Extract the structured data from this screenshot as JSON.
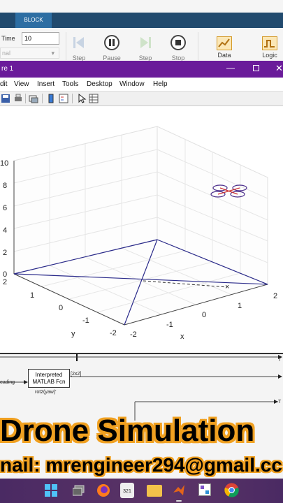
{
  "ribbon": {
    "tab_block": "BLOCK",
    "stop_time_label": "Time",
    "stop_time_value": "10",
    "mode_value": "nal",
    "buttons": [
      "Step",
      "Pause",
      "Step",
      "Stop"
    ],
    "data_label": "Data",
    "logic_label": "Logic"
  },
  "figure_window": {
    "title": "re 1",
    "menu": [
      "dit",
      "View",
      "Insert",
      "Tools",
      "Desktop",
      "Window",
      "Help"
    ]
  },
  "plot": {
    "z_ticks": [
      "10",
      "8",
      "6",
      "4",
      "2",
      "0"
    ],
    "y_ticks": [
      "2",
      "1",
      "0",
      "-1",
      "-2"
    ],
    "x_ticks": [
      "-2",
      "-1",
      "0",
      "1",
      "2"
    ],
    "xlabel": "x",
    "ylabel": "y",
    "colors": {
      "line": "#2a2a8a",
      "grid": "#e0e0e0",
      "axis": "#333333"
    }
  },
  "simulink": {
    "block_title_1": "Interpreted",
    "block_title_2": "MATLAB Fcn",
    "block_caption": "rot2(yaw)'",
    "input_label": "eading",
    "output_label": "[2x2]",
    "port_T1": "T",
    "port_T2": "T"
  },
  "overlay": {
    "title": "Drone Simulation",
    "email": "nail: mrengineer294@gmail.cc"
  },
  "taskbar": {
    "calendar_day": "321",
    "apps": [
      "windows-start-icon",
      "file-explorer-alt-icon",
      "firefox-icon",
      "calendar-icon",
      "folder-icon",
      "matlab-icon",
      "app-icon",
      "chrome-icon"
    ]
  }
}
